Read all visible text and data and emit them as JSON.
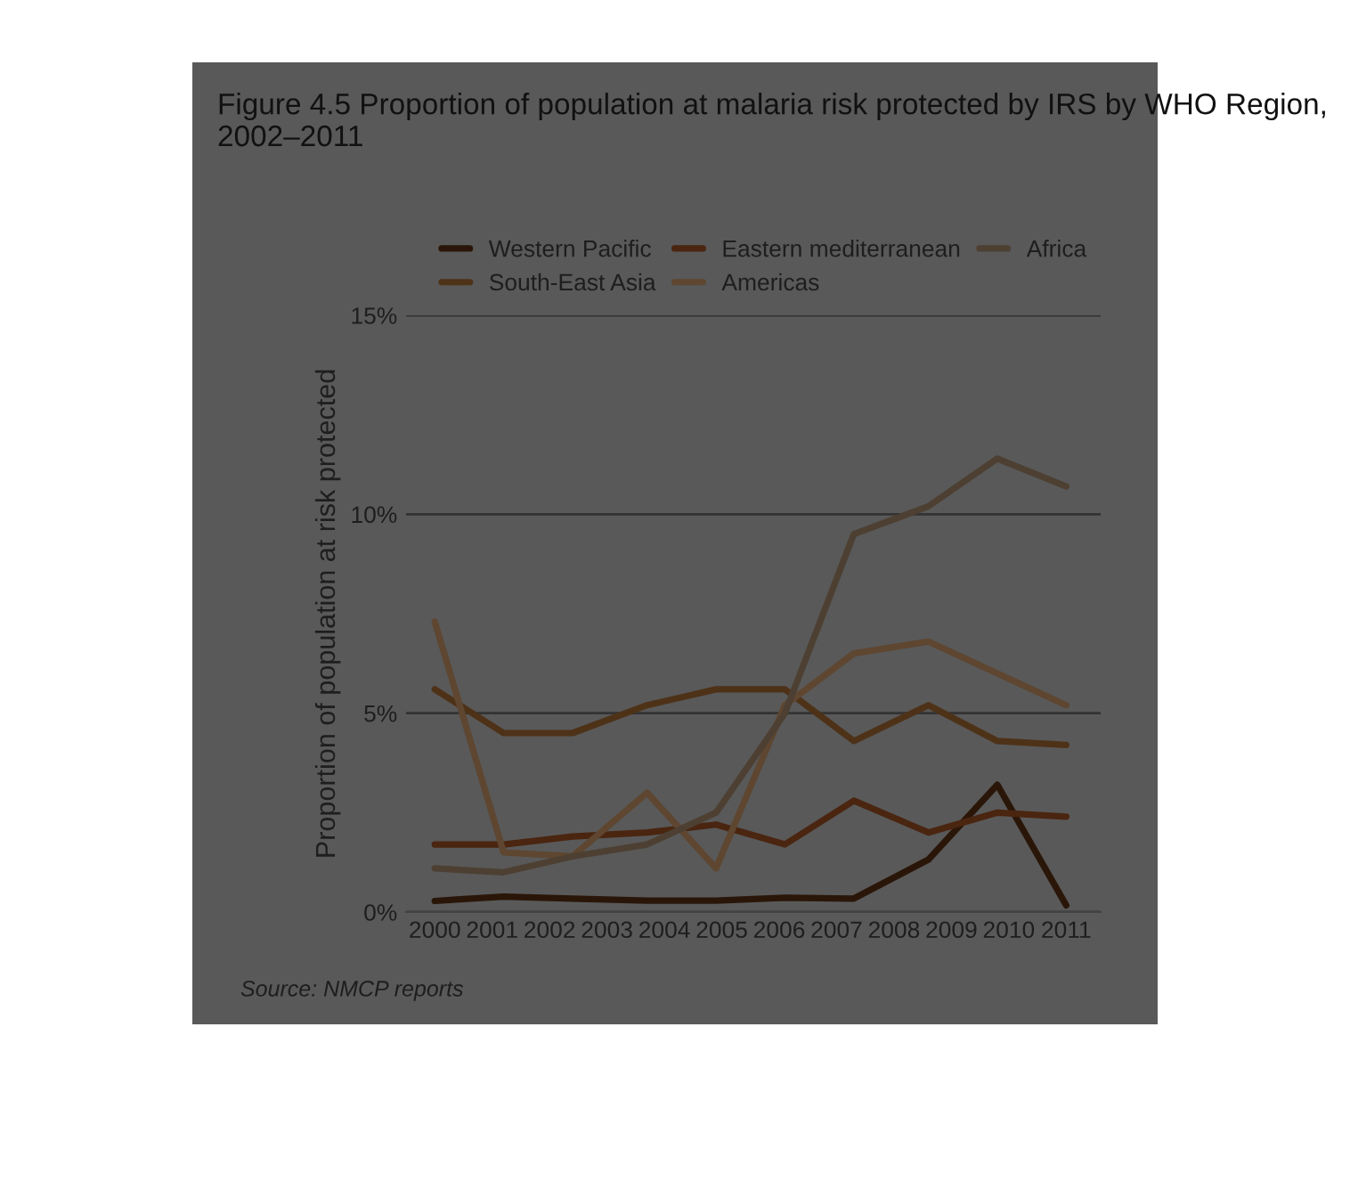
{
  "chart_data": {
    "type": "line",
    "title": "Figure 4.5 Proportion of population at malaria risk protected by IRS by WHO Region, 2002–2011",
    "ylabel": "Proportion of population at risk protected",
    "annotations": [
      "Source: NMCP reports"
    ],
    "x": [
      2000,
      2001.2,
      2002.4,
      2003.7,
      2004.9,
      2006.1,
      2007.3,
      2008.6,
      2009.8,
      2011
    ],
    "xlim": [
      1999.5,
      2011.6
    ],
    "xticks": [
      2000,
      2001,
      2002,
      2003,
      2004,
      2005,
      2006,
      2007,
      2008,
      2009,
      2010,
      2011
    ],
    "ylim": [
      0,
      15
    ],
    "yticks": [
      {
        "value": 0,
        "label": "0%"
      },
      {
        "value": 5,
        "label": "5%"
      },
      {
        "value": 10,
        "label": "10%"
      },
      {
        "value": 15,
        "label": "15%"
      }
    ],
    "grid": "y",
    "legend": "top right",
    "marker": "none",
    "line_style": "solid",
    "series": [
      {
        "name": "Western Pacific",
        "color": "#2a1608",
        "values": [
          0.28,
          0.39,
          0.34,
          0.29,
          0.29,
          0.36,
          0.34,
          1.32,
          3.2,
          0.17
        ]
      },
      {
        "name": "South-East Asia",
        "color": "#4e3218",
        "values": [
          5.6,
          4.5,
          4.5,
          5.2,
          5.6,
          5.6,
          4.3,
          5.2,
          4.3,
          4.2
        ]
      },
      {
        "name": "Eastern mediterranean",
        "color": "#4a2510",
        "values": [
          1.7,
          1.7,
          1.9,
          2.0,
          2.2,
          1.7,
          2.8,
          2.0,
          2.5,
          2.4
        ]
      },
      {
        "name": "Americas",
        "color": "#5e4630",
        "values": [
          7.3,
          1.5,
          1.4,
          3.0,
          1.1,
          5.2,
          6.5,
          6.8,
          6.0,
          5.2
        ]
      },
      {
        "name": "Africa",
        "color": "#4d4032",
        "values": [
          1.1,
          1.0,
          1.4,
          1.7,
          2.5,
          5.0,
          9.5,
          10.2,
          11.4,
          10.7
        ]
      }
    ]
  }
}
